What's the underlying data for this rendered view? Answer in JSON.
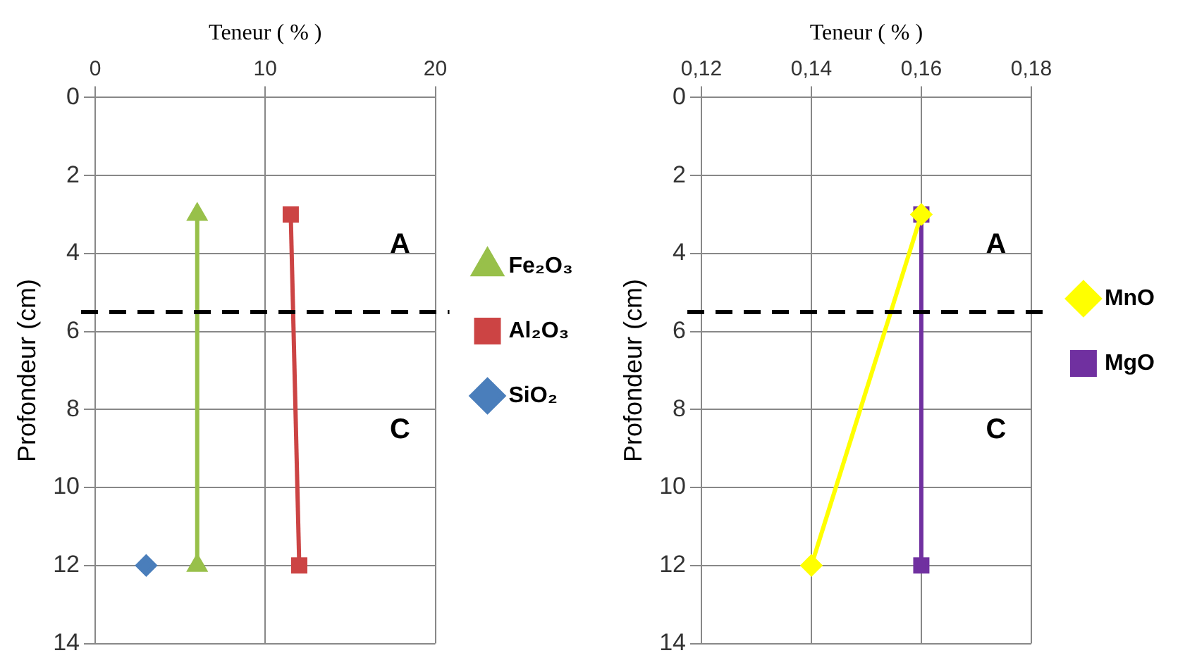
{
  "chart_data": [
    {
      "type": "line",
      "xlabel": "Teneur ( % )",
      "ylabel": "Profondeur (cm)",
      "xlim": [
        0,
        20
      ],
      "xticks": [
        0,
        10,
        20
      ],
      "ylim": [
        14,
        0
      ],
      "yticks": [
        0,
        2,
        4,
        6,
        8,
        10,
        12,
        14
      ],
      "grid": true,
      "legend": "right",
      "series": [
        {
          "name": "SiO₂",
          "color": "#4a7ebb",
          "marker": "diamond",
          "x": [
            3
          ],
          "values": [
            12
          ]
        },
        {
          "name": "Al₂O₃",
          "color": "#cc4444",
          "marker": "square",
          "x": [
            11.5,
            12
          ],
          "values": [
            3,
            12
          ]
        },
        {
          "name": "Fe₂O₃",
          "color": "#98c04a",
          "marker": "triangle",
          "x": [
            6,
            6
          ],
          "values": [
            3,
            12
          ]
        }
      ],
      "ref_lines": [
        {
          "axis": "y",
          "value": 5.5,
          "color": "#000000",
          "line_style": "dashed"
        }
      ],
      "annotations": [
        "A",
        "C"
      ]
    },
    {
      "type": "line",
      "xlabel": "Teneur ( % )",
      "ylabel": "Profondeur (cm)",
      "xlim": [
        0.12,
        0.18
      ],
      "xticks": [
        {
          "value": 0.12,
          "label": "0,12"
        },
        {
          "value": 0.14,
          "label": "0,14"
        },
        {
          "value": 0.16,
          "label": "0,16"
        },
        {
          "value": 0.18,
          "label": "0,18"
        }
      ],
      "ylim": [
        14,
        0
      ],
      "yticks": [
        0,
        2,
        4,
        6,
        8,
        10,
        12,
        14
      ],
      "grid": true,
      "legend": "right",
      "series": [
        {
          "name": "MgO",
          "color": "#7030a0",
          "marker": "square",
          "x": [
            0.16,
            0.16
          ],
          "values": [
            3,
            12
          ]
        },
        {
          "name": "MnO",
          "color": "#ffff00",
          "marker": "diamond",
          "x": [
            0.16,
            0.14
          ],
          "values": [
            3,
            12
          ]
        }
      ],
      "ref_lines": [
        {
          "axis": "y",
          "value": 5.5,
          "color": "#000000",
          "line_style": "dashed"
        }
      ],
      "annotations": [
        "A",
        "C"
      ]
    }
  ]
}
